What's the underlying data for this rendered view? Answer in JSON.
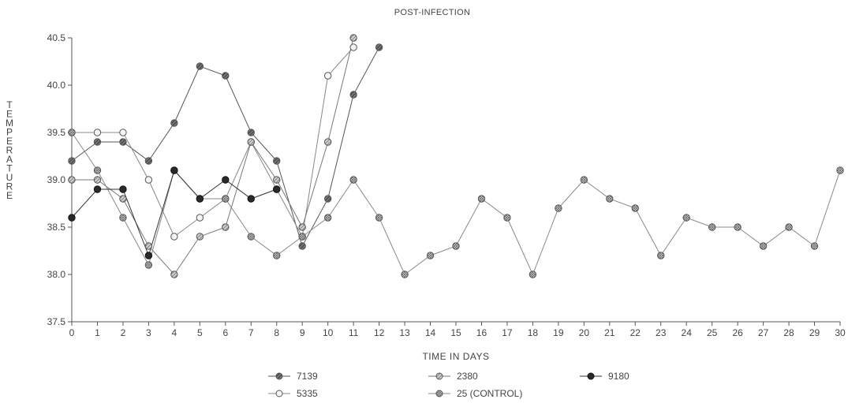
{
  "chart_data": {
    "type": "line",
    "title": "POST-INFECTION",
    "xlabel": "TIME IN DAYS",
    "ylabel": "TEMPERATURE",
    "xlim": [
      0,
      30
    ],
    "ylim": [
      37.5,
      40.5
    ],
    "x_ticks": [
      0,
      1,
      2,
      3,
      4,
      5,
      6,
      7,
      8,
      9,
      10,
      11,
      12,
      13,
      14,
      15,
      16,
      17,
      18,
      19,
      20,
      21,
      22,
      23,
      24,
      25,
      26,
      27,
      28,
      29,
      30
    ],
    "y_ticks": [
      "37.5",
      "38.0",
      "38.5",
      "39.0",
      "39.5",
      "40.0",
      "40.5"
    ],
    "grid": false,
    "legend_position": "bottom",
    "series": [
      {
        "name": "7139",
        "marker": "dark-hatched",
        "color": "#555555",
        "x": [
          0,
          1,
          2,
          3,
          4,
          5,
          6,
          7,
          8,
          9,
          10,
          11,
          12
        ],
        "y": [
          39.2,
          39.4,
          39.4,
          39.2,
          39.6,
          40.2,
          40.1,
          39.5,
          39.2,
          38.3,
          38.8,
          39.9,
          40.4
        ]
      },
      {
        "name": "5335",
        "marker": "open-circle",
        "color": "#888888",
        "x": [
          0,
          1,
          2,
          3,
          4,
          5,
          6,
          7,
          8,
          9,
          10,
          11
        ],
        "y": [
          39.5,
          39.5,
          39.5,
          39.0,
          38.4,
          38.6,
          38.8,
          39.4,
          38.9,
          38.4,
          40.1,
          40.4
        ]
      },
      {
        "name": "2380",
        "marker": "hatched",
        "color": "#777777",
        "x": [
          0,
          1,
          2,
          3,
          4,
          5,
          6,
          7,
          8,
          9,
          10,
          11
        ],
        "y": [
          39.0,
          39.0,
          38.8,
          38.3,
          38.0,
          38.4,
          38.5,
          39.4,
          39.0,
          38.5,
          39.4,
          40.5
        ]
      },
      {
        "name": "25 (CONTROL)",
        "marker": "cross-hatched",
        "color": "#888888",
        "x": [
          0,
          1,
          2,
          3,
          4,
          5,
          6,
          7,
          8,
          9,
          10,
          11,
          12,
          13,
          14,
          15,
          16,
          17,
          18,
          19,
          20,
          21,
          22,
          23,
          24,
          25,
          26,
          27,
          28,
          29,
          30
        ],
        "y": [
          39.5,
          39.1,
          38.6,
          38.1,
          39.1,
          38.8,
          38.8,
          38.4,
          38.2,
          38.4,
          38.6,
          39.0,
          38.6,
          38.0,
          38.2,
          38.3,
          38.8,
          38.6,
          38.0,
          38.7,
          39.0,
          38.8,
          38.7,
          38.2,
          38.6,
          38.5,
          38.5,
          38.3,
          38.5,
          38.3,
          39.1
        ]
      },
      {
        "name": "9180",
        "marker": "solid",
        "color": "#333333",
        "x": [
          0,
          1,
          2,
          3,
          4,
          5,
          6,
          7,
          8
        ],
        "y": [
          38.6,
          38.9,
          38.9,
          38.2,
          39.1,
          38.8,
          39.0,
          38.8,
          38.9
        ]
      }
    ]
  }
}
